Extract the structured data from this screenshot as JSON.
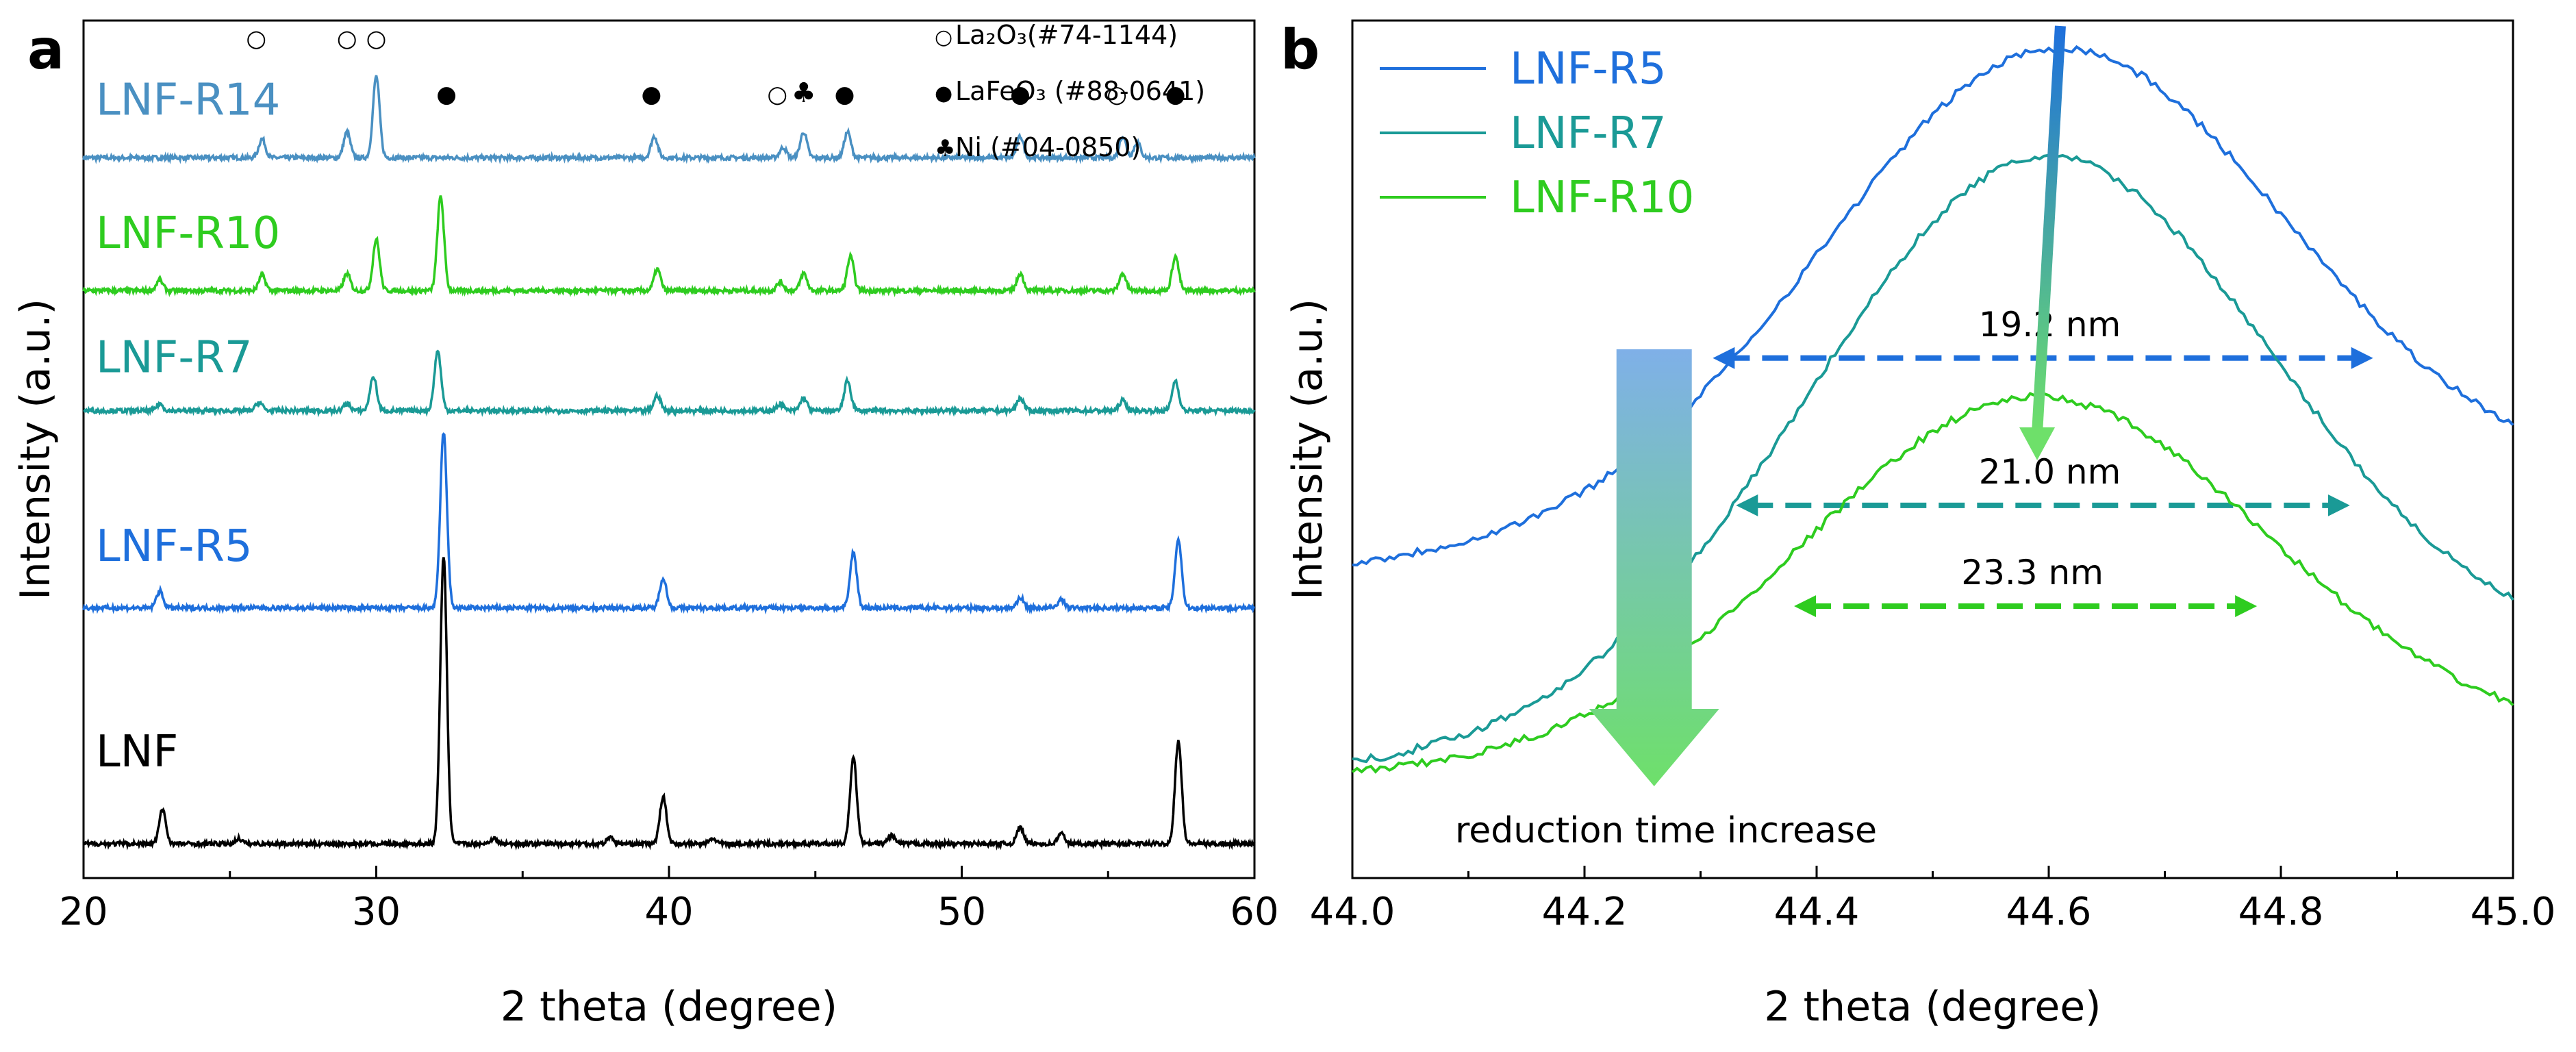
{
  "chart_data": [
    {
      "panel": "a",
      "type": "line",
      "title": "",
      "xlabel": "2 theta (degree)",
      "ylabel": "Intensity (a.u.)",
      "xlim": [
        20,
        60
      ],
      "xticks": [
        20,
        30,
        40,
        50,
        60
      ],
      "ylim": [
        0,
        1
      ],
      "y_ticks_shown": false,
      "series": [
        {
          "name": "LNF-R14",
          "color": "#4a90c2",
          "baseline": 0.84,
          "peaks": [
            [
              26.1,
              0.022
            ],
            [
              29.0,
              0.03
            ],
            [
              30.0,
              0.095
            ],
            [
              39.5,
              0.025
            ],
            [
              43.9,
              0.012
            ],
            [
              44.6,
              0.03
            ],
            [
              46.1,
              0.03
            ],
            [
              52.0,
              0.025
            ],
            [
              55.5,
              0.025
            ],
            [
              56.0,
              0.018
            ]
          ]
        },
        {
          "name": "LNF-R10",
          "color": "#2ecc1f",
          "baseline": 0.685,
          "peaks": [
            [
              22.6,
              0.012
            ],
            [
              26.1,
              0.018
            ],
            [
              29.0,
              0.02
            ],
            [
              30.0,
              0.06
            ],
            [
              32.2,
              0.11
            ],
            [
              39.6,
              0.025
            ],
            [
              43.8,
              0.01
            ],
            [
              44.6,
              0.02
            ],
            [
              46.2,
              0.04
            ],
            [
              52.0,
              0.02
            ],
            [
              55.5,
              0.02
            ],
            [
              57.3,
              0.04
            ]
          ]
        },
        {
          "name": "LNF-R7",
          "color": "#1a9a96",
          "baseline": 0.545,
          "peaks": [
            [
              22.6,
              0.008
            ],
            [
              26.0,
              0.01
            ],
            [
              29.0,
              0.008
            ],
            [
              29.9,
              0.04
            ],
            [
              32.1,
              0.07
            ],
            [
              39.6,
              0.018
            ],
            [
              43.8,
              0.008
            ],
            [
              44.6,
              0.015
            ],
            [
              46.1,
              0.035
            ],
            [
              52.0,
              0.015
            ],
            [
              55.5,
              0.012
            ],
            [
              57.3,
              0.035
            ]
          ]
        },
        {
          "name": "LNF-R5",
          "color": "#1e6fdc",
          "baseline": 0.315,
          "peaks": [
            [
              22.6,
              0.02
            ],
            [
              32.3,
              0.205
            ],
            [
              39.8,
              0.035
            ],
            [
              46.3,
              0.065
            ],
            [
              52.0,
              0.012
            ],
            [
              53.4,
              0.01
            ],
            [
              57.4,
              0.08
            ]
          ]
        },
        {
          "name": "LNF",
          "color": "#000000",
          "baseline": 0.04,
          "peaks": [
            [
              22.7,
              0.04
            ],
            [
              25.3,
              0.006
            ],
            [
              32.3,
              0.335
            ],
            [
              34.0,
              0.006
            ],
            [
              38.0,
              0.008
            ],
            [
              39.8,
              0.055
            ],
            [
              41.5,
              0.006
            ],
            [
              46.3,
              0.1
            ],
            [
              47.6,
              0.01
            ],
            [
              52.0,
              0.02
            ],
            [
              53.4,
              0.012
            ],
            [
              57.4,
              0.12
            ]
          ]
        }
      ],
      "markers": [
        {
          "symbol": "○",
          "x": 25.9,
          "y": 0.97
        },
        {
          "symbol": "○",
          "x": 29.0,
          "y": 0.97
        },
        {
          "symbol": "○",
          "x": 30.0,
          "y": 0.97
        },
        {
          "symbol": "●",
          "x": 32.4,
          "y": 0.905
        },
        {
          "symbol": "●",
          "x": 39.4,
          "y": 0.905
        },
        {
          "symbol": "○",
          "x": 43.7,
          "y": 0.905
        },
        {
          "symbol": "♣",
          "x": 44.6,
          "y": 0.905
        },
        {
          "symbol": "●",
          "x": 46.0,
          "y": 0.905
        },
        {
          "symbol": "●",
          "x": 52.0,
          "y": 0.905
        },
        {
          "symbol": "○",
          "x": 55.3,
          "y": 0.905
        },
        {
          "symbol": "●",
          "x": 57.3,
          "y": 0.905
        }
      ],
      "legend": [
        {
          "symbol": "○",
          "text": "La₂O₃(#74-1144)"
        },
        {
          "symbol": "●",
          "text": "LaFeO₃ (#88-0641)"
        },
        {
          "symbol": "♣",
          "text": "Ni (#04-0850)"
        }
      ]
    },
    {
      "panel": "b",
      "type": "line",
      "title": "",
      "xlabel": "2 theta (degree)",
      "ylabel": "Intensity (a.u.)",
      "xlim": [
        44.0,
        45.0
      ],
      "xticks": [
        "44.0",
        "44.2",
        "44.4",
        "44.6",
        "44.8",
        "45.0"
      ],
      "ylim": [
        0,
        1
      ],
      "y_ticks_shown": false,
      "series": [
        {
          "name": "LNF-R5",
          "color": "#1e6fdc",
          "center": 44.61,
          "fwhm_nm": "19.2 nm",
          "fwhm_range": [
            44.32,
            44.87
          ],
          "fwhm_y": 0.6,
          "peak_y": 1.0,
          "base_left": 0.33,
          "base_right": 0.43
        },
        {
          "name": "LNF-R7",
          "color": "#1a9a96",
          "center": 44.6,
          "fwhm_nm": "21.0 nm",
          "fwhm_range": [
            44.34,
            44.85
          ],
          "fwhm_y": 0.41,
          "peak_y": 0.86,
          "base_left": 0.07,
          "base_right": 0.2
        },
        {
          "name": "LNF-R10",
          "color": "#2ecc1f",
          "center": 44.59,
          "fwhm_nm": "23.3 nm",
          "fwhm_range": [
            44.39,
            44.77
          ],
          "fwhm_y": 0.28,
          "peak_y": 0.55,
          "base_left": 0.06,
          "base_right": 0.1
        }
      ],
      "annotation": "reduction time increase"
    }
  ],
  "panels": {
    "a": {
      "letter": "a"
    },
    "b": {
      "letter": "b"
    }
  }
}
